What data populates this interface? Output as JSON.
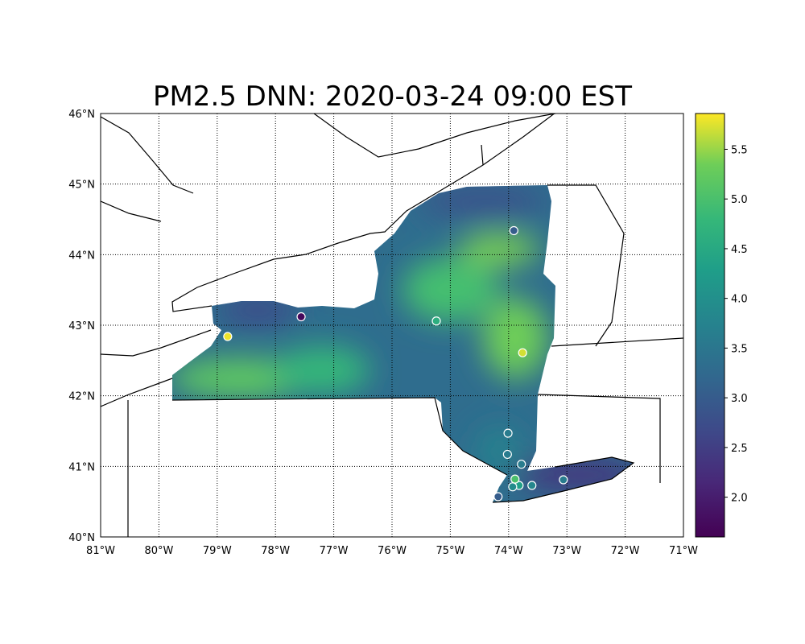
{
  "title": "PM2.5 DNN: 2020-03-24 09:00 EST",
  "chart_data": {
    "type": "map",
    "title": "PM2.5 DNN: 2020-03-24 09:00 EST",
    "lon_range": [
      -81,
      -71
    ],
    "lat_range": [
      40,
      46
    ],
    "grid": true,
    "lon_ticks": [
      "81°W",
      "80°W",
      "79°W",
      "78°W",
      "77°W",
      "76°W",
      "75°W",
      "74°W",
      "73°W",
      "72°W",
      "71°W"
    ],
    "lat_ticks": [
      "40°N",
      "41°N",
      "42°N",
      "43°N",
      "44°N",
      "45°N",
      "46°N"
    ],
    "colormap": "viridis",
    "colorbar": {
      "range": [
        1.6,
        5.86
      ],
      "ticks": [
        "2.0",
        "2.5",
        "3.0",
        "3.5",
        "4.0",
        "4.5",
        "5.0",
        "5.5"
      ],
      "placement": "right"
    },
    "stations": [
      {
        "lon": -73.91,
        "lat": 44.34,
        "value": 3.0
      },
      {
        "lon": -77.56,
        "lat": 43.12,
        "value": 1.7
      },
      {
        "lon": -75.24,
        "lat": 43.06,
        "value": 4.6
      },
      {
        "lon": -78.82,
        "lat": 42.84,
        "value": 5.8
      },
      {
        "lon": -73.76,
        "lat": 42.61,
        "value": 5.7
      },
      {
        "lon": -74.01,
        "lat": 41.47,
        "value": 3.6
      },
      {
        "lon": -74.02,
        "lat": 41.17,
        "value": 3.6
      },
      {
        "lon": -73.78,
        "lat": 41.03,
        "value": 3.6
      },
      {
        "lon": -73.06,
        "lat": 40.81,
        "value": 3.6
      },
      {
        "lon": -73.6,
        "lat": 40.73,
        "value": 3.8
      },
      {
        "lon": -73.82,
        "lat": 40.73,
        "value": 4.3
      },
      {
        "lon": -73.93,
        "lat": 40.71,
        "value": 3.9
      },
      {
        "lon": -73.89,
        "lat": 40.82,
        "value": 5.0
      },
      {
        "lon": -74.18,
        "lat": 40.57,
        "value": 3.0
      }
    ]
  }
}
